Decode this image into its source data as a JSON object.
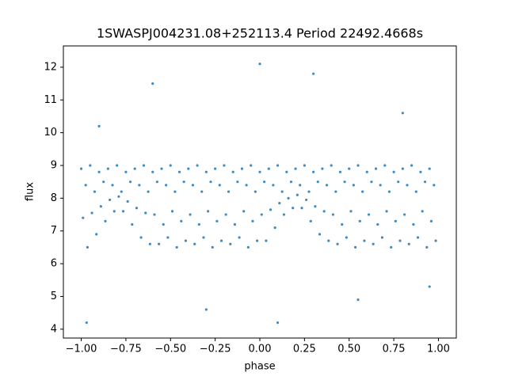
{
  "chart_data": {
    "type": "scatter",
    "title": "1SWASPJ004231.08+252113.4 Period 22492.4668s",
    "x_label": "phase",
    "y_label": "flux",
    "color": "#1f77b4",
    "xlim": [
      -1.1,
      1.1
    ],
    "ylim": [
      3.73,
      12.65
    ],
    "xticks": [
      {
        "value": -1,
        "label": "−1.00"
      },
      {
        "value": -0.75,
        "label": "−0.75"
      },
      {
        "value": -0.5,
        "label": "−0.50"
      },
      {
        "value": -0.25,
        "label": "−0.25"
      },
      {
        "value": 0,
        "label": "0.00"
      },
      {
        "value": 0.25,
        "label": "0.25"
      },
      {
        "value": 0.5,
        "label": "0.50"
      },
      {
        "value": 0.75,
        "label": "0.75"
      },
      {
        "value": 1,
        "label": "1.00"
      }
    ],
    "yticks": [
      4,
      5,
      6,
      7,
      8,
      9,
      10,
      11,
      12
    ],
    "x": [
      -1,
      -0.95,
      -0.9,
      -0.85,
      -0.8,
      -0.75,
      -0.7,
      -0.65,
      -0.6,
      -0.55,
      -0.5,
      -0.45,
      -0.4,
      -0.35,
      -0.3,
      -0.25,
      -0.2,
      -0.15,
      -0.1,
      -0.05,
      0,
      0.05,
      0.1,
      0.15,
      0.2,
      0.25,
      0.3,
      0.35,
      0.4,
      0.45,
      0.5,
      0.55,
      0.6,
      0.65,
      0.7,
      0.75,
      0.8,
      0.85,
      0.9,
      0.95,
      -0.975,
      -0.925,
      -0.875,
      -0.825,
      -0.775,
      -0.725,
      -0.675,
      -0.625,
      -0.575,
      -0.525,
      -0.475,
      -0.425,
      -0.375,
      -0.325,
      -0.275,
      -0.225,
      -0.175,
      -0.125,
      -0.075,
      -0.025,
      0.025,
      0.075,
      0.125,
      0.175,
      0.225,
      0.275,
      0.325,
      0.375,
      0.425,
      0.475,
      0.525,
      0.575,
      0.625,
      0.675,
      0.725,
      0.775,
      0.825,
      0.875,
      0.925,
      0.975,
      -0.99,
      -0.94,
      -0.89,
      -0.84,
      -0.79,
      -0.74,
      -0.69,
      -0.64,
      -0.59,
      -0.54,
      -0.49,
      -0.44,
      -0.39,
      -0.34,
      -0.29,
      -0.24,
      -0.19,
      -0.14,
      -0.09,
      -0.04,
      0.01,
      0.06,
      0.11,
      0.16,
      0.21,
      0.26,
      0.31,
      0.36,
      0.41,
      0.46,
      0.51,
      0.56,
      0.61,
      0.66,
      0.71,
      0.76,
      0.81,
      0.86,
      0.91,
      0.96,
      -0.965,
      -0.915,
      -0.865,
      -0.815,
      -0.765,
      -0.715,
      -0.665,
      -0.615,
      -0.565,
      -0.515,
      -0.465,
      -0.415,
      -0.365,
      -0.315,
      -0.265,
      -0.215,
      -0.165,
      -0.115,
      -0.065,
      -0.015,
      0.035,
      0.085,
      0.135,
      0.185,
      0.235,
      0.285,
      0.335,
      0.385,
      0.435,
      0.485,
      0.535,
      0.585,
      0.635,
      0.685,
      0.735,
      0.785,
      0.835,
      0.885,
      0.935,
      0.985,
      -0.9,
      -0.6,
      -0.3,
      0.1,
      0.3,
      0.55,
      0.8,
      0.95,
      -0.97,
      0
    ],
    "y": [
      8.9,
      9.0,
      8.8,
      8.9,
      9.0,
      8.8,
      8.9,
      9.0,
      8.8,
      8.9,
      9.0,
      8.8,
      8.9,
      9.0,
      8.8,
      8.9,
      9.0,
      8.8,
      8.9,
      9.0,
      8.8,
      8.9,
      9.0,
      8.8,
      8.9,
      9.0,
      8.8,
      8.9,
      9.0,
      8.8,
      8.9,
      9.0,
      8.8,
      8.9,
      9.0,
      8.8,
      8.9,
      9.0,
      8.8,
      8.9,
      8.4,
      8.2,
      8.5,
      8.4,
      8.2,
      8.5,
      8.4,
      8.2,
      8.5,
      8.4,
      8.2,
      8.5,
      8.4,
      8.2,
      8.5,
      8.4,
      8.2,
      8.5,
      8.4,
      8.2,
      8.5,
      8.4,
      8.2,
      8.5,
      8.4,
      8.2,
      8.5,
      8.4,
      8.2,
      8.5,
      8.4,
      8.2,
      8.5,
      8.4,
      8.2,
      8.5,
      8.4,
      8.2,
      8.5,
      8.4,
      7.4,
      7.55,
      7.75,
      7.95,
      8.05,
      7.9,
      7.7,
      7.55,
      7.5,
      7.2,
      7.6,
      7.3,
      7.5,
      7.2,
      7.6,
      7.3,
      7.5,
      7.2,
      7.6,
      7.3,
      7.5,
      7.65,
      7.85,
      8.0,
      8.1,
      7.95,
      7.75,
      7.6,
      7.5,
      7.2,
      7.6,
      7.3,
      7.5,
      7.2,
      7.6,
      7.3,
      7.5,
      7.2,
      7.6,
      7.3,
      6.5,
      6.9,
      7.3,
      7.6,
      7.6,
      7.2,
      6.8,
      6.6,
      6.6,
      6.8,
      6.5,
      6.7,
      6.6,
      6.8,
      6.5,
      6.7,
      6.6,
      6.8,
      6.5,
      6.7,
      6.7,
      7.1,
      7.5,
      7.7,
      7.7,
      7.3,
      6.9,
      6.7,
      6.6,
      6.8,
      6.5,
      6.7,
      6.6,
      6.8,
      6.5,
      6.7,
      6.6,
      6.8,
      6.5,
      6.7,
      10.2,
      11.5,
      4.6,
      4.2,
      11.8,
      4.9,
      10.6,
      5.3,
      4.2,
      12.1
    ]
  }
}
